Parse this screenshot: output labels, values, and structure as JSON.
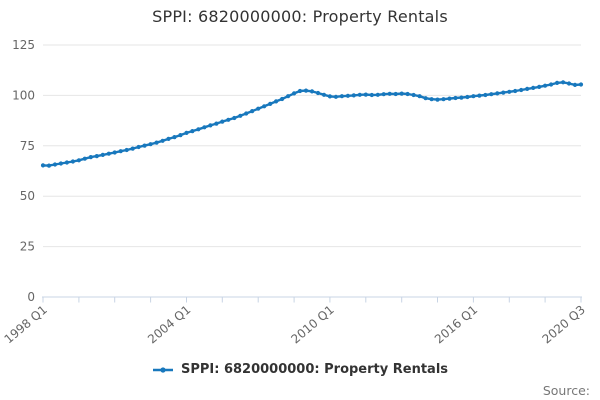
{
  "title": "SPPI: 6820000000: Property Rentals",
  "legend": {
    "label": "SPPI: 6820000000: Property Rentals"
  },
  "source": {
    "label": "Source:"
  },
  "colors": {
    "line": "#1878bd",
    "grid": "#e6e6e6",
    "axis": "#c8d4e4",
    "tick_label": "#666666",
    "title": "#333333",
    "legend_text": "#333333",
    "source_text": "#777777"
  },
  "chart_data": {
    "type": "line",
    "title": "SPPI: 6820000000: Property Rentals",
    "xlabel": "",
    "ylabel": "",
    "grid": "horizontal",
    "legend_position": "bottom-center",
    "x": {
      "frequency": "quarterly",
      "start_label": "1998 Q1",
      "end_label": "2020 Q3",
      "tick_every_quarters": 6,
      "labeled_tick_indices": [
        0,
        24,
        48,
        72,
        90
      ],
      "labeled_tick_labels": [
        "1998 Q1",
        "2004 Q1",
        "2010 Q1",
        "2016 Q1",
        "2020 Q3"
      ]
    },
    "y": {
      "min": 0,
      "max": 125,
      "ticks": [
        0,
        25,
        50,
        75,
        100,
        125
      ]
    },
    "series": [
      {
        "name": "SPPI: 6820000000: Property Rentals",
        "color": "#1878bd",
        "marker": "circle",
        "values": [
          65.3,
          65.2,
          65.7,
          66.2,
          66.7,
          67.2,
          67.8,
          68.6,
          69.4,
          69.9,
          70.5,
          71.1,
          71.7,
          72.3,
          72.9,
          73.6,
          74.4,
          75.1,
          75.8,
          76.6,
          77.5,
          78.4,
          79.3,
          80.3,
          81.4,
          82.3,
          83.2,
          84.2,
          85.1,
          86.0,
          87.0,
          87.9,
          88.8,
          89.9,
          91.0,
          92.2,
          93.4,
          94.6,
          95.8,
          97.0,
          98.2,
          99.6,
          101.0,
          102.2,
          102.4,
          102.0,
          101.2,
          100.3,
          99.5,
          99.3,
          99.6,
          99.8,
          100.0,
          100.3,
          100.4,
          100.2,
          100.3,
          100.6,
          100.8,
          100.7,
          100.9,
          100.7,
          100.2,
          99.6,
          98.6,
          98.1,
          97.9,
          98.1,
          98.4,
          98.7,
          98.9,
          99.2,
          99.6,
          99.9,
          100.2,
          100.6,
          101.0,
          101.4,
          101.8,
          102.2,
          102.7,
          103.2,
          103.7,
          104.2,
          104.8,
          105.4,
          106.2,
          106.5,
          105.9,
          105.2,
          105.4
        ]
      }
    ]
  }
}
